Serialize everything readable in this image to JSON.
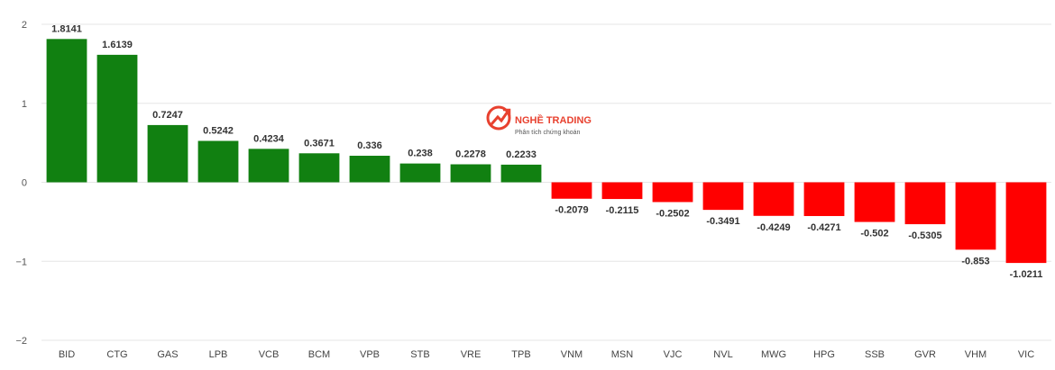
{
  "watermark": {
    "title": "NGHỀ TRADING",
    "subtitle": "Phân tích chứng khoán",
    "icon": "nghe-trading-logo-icon",
    "color": "#e8412f"
  },
  "chart_data": {
    "type": "bar",
    "title": "",
    "xlabel": "",
    "ylabel": "",
    "ylim": [
      -2,
      2
    ],
    "yticks": [
      2,
      1,
      0,
      -1,
      -2
    ],
    "grid": true,
    "legend": "none",
    "colors": {
      "positive": "#118011",
      "negative": "#ff0000"
    },
    "categories": [
      "BID",
      "CTG",
      "GAS",
      "LPB",
      "VCB",
      "BCM",
      "VPB",
      "STB",
      "VRE",
      "TPB",
      "VNM",
      "MSN",
      "VJC",
      "NVL",
      "MWG",
      "HPG",
      "SSB",
      "GVR",
      "VHM",
      "VIC"
    ],
    "values": [
      1.8141,
      1.6139,
      0.7247,
      0.5242,
      0.4234,
      0.3671,
      0.336,
      0.238,
      0.2278,
      0.2233,
      -0.2079,
      -0.2115,
      -0.2502,
      -0.3491,
      -0.4249,
      -0.4271,
      -0.502,
      -0.5305,
      -0.853,
      -1.0211
    ],
    "labels": [
      "1.8141",
      "1.6139",
      "0.7247",
      "0.5242",
      "0.4234",
      "0.3671",
      "0.336",
      "0.238",
      "0.2278",
      "0.2233",
      "-0.2079",
      "-0.2115",
      "-0.2502",
      "-0.3491",
      "-0.4249",
      "-0.4271",
      "-0.502",
      "-0.5305",
      "-0.853",
      "-1.0211"
    ]
  }
}
